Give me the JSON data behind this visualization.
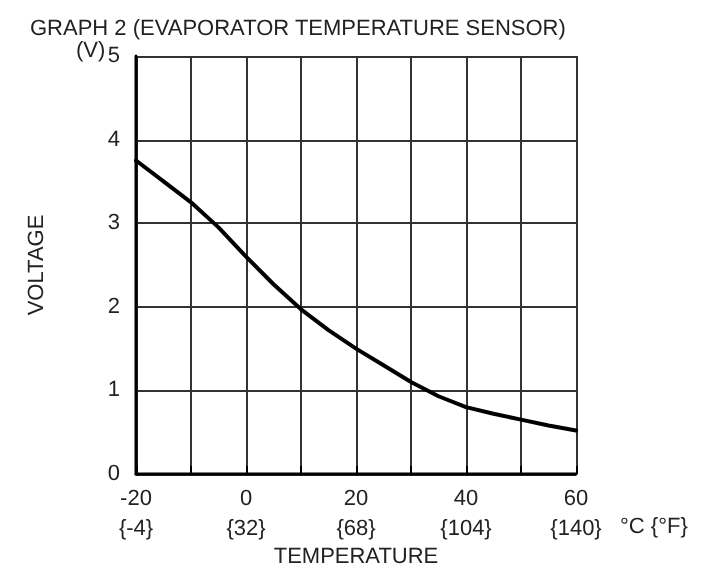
{
  "chart_data": {
    "type": "line",
    "title": "GRAPH 2 (EVAPORATOR TEMPERATURE SENSOR)",
    "xlabel": "TEMPERATURE",
    "ylabel": "VOLTAGE",
    "annotations": [
      "(V)",
      "°C {°F}"
    ],
    "x": [
      -20,
      -15,
      -10,
      -5,
      0,
      5,
      10,
      15,
      20,
      25,
      30,
      35,
      40,
      45,
      50,
      55,
      60
    ],
    "series": [
      {
        "color": "#000000",
        "values": [
          3.75,
          3.5,
          3.25,
          2.95,
          2.6,
          2.27,
          1.97,
          1.72,
          1.5,
          1.3,
          1.1,
          0.93,
          0.8,
          0.72,
          0.65,
          0.58,
          0.52
        ]
      }
    ],
    "xlim": [
      -20,
      60
    ],
    "xticks": [
      -20,
      {
        "value": -10,
        "label": null
      },
      0,
      {
        "value": 10,
        "label": null
      },
      20,
      {
        "value": 30,
        "label": null
      },
      40,
      {
        "value": 50,
        "label": null
      },
      60
    ],
    "x2lim": [
      -4,
      140
    ],
    "x2ticks": [
      {
        "value": -4,
        "label": "{-4}"
      },
      {
        "value": 32,
        "label": "{32}"
      },
      {
        "value": 68,
        "label": "{68}"
      },
      {
        "value": 104,
        "label": "{104}"
      },
      {
        "value": 140,
        "label": "{140}"
      }
    ],
    "ylim": [
      0,
      5
    ],
    "yticks": [
      0,
      1,
      2,
      3,
      4,
      5
    ],
    "grid": true,
    "marker": "none",
    "line_style": "solid"
  }
}
